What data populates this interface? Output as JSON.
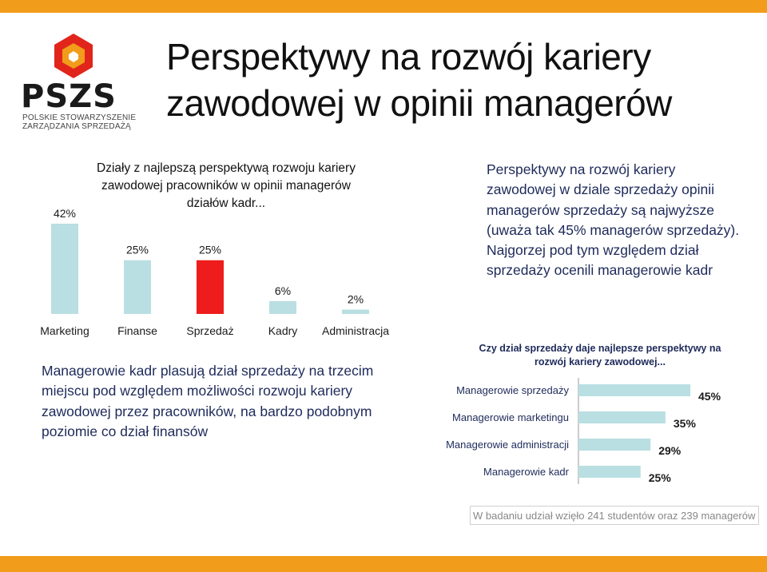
{
  "header": {
    "title_line1": "Perspektywy na rozwój kariery",
    "title_line2": "zawodowej w opinii managerów",
    "colors": {
      "accent": "#f29c1c"
    }
  },
  "logo": {
    "text": "PSZS",
    "subtitle_line1": "POLSKIE STOWARZYSZENIE",
    "subtitle_line2": "ZARZĄDZANIA SPRZEDAŻĄ",
    "colors": {
      "red": "#e1251b",
      "orange": "#f29c1c",
      "dark": "#1a1a1a"
    }
  },
  "right_text": "Perspektywy na rozwój kariery zawodowej w dziale sprzedaży opinii managerów sprzedaży są najwyższe (uważa tak 45% managerów sprzedaży). Najgorzej pod tym względem dział sprzedaży ocenili managerowie kadr",
  "left_text": "Managerowie kadr plasują dział sprzedaży na trzecim miejscu pod względem możliwości rozwoju kariery zawodowej przez pracowników, na bardzo podobnym poziomie co dział finansów",
  "footnote": "W badaniu udział wzięło 241 studentów oraz 239 managerów",
  "chart_data": [
    {
      "type": "bar",
      "title_lines": [
        "Działy z najlepszą perspektywą rozwoju kariery",
        "zawodowej pracowników w opinii managerów",
        "działów kadr..."
      ],
      "categories": [
        "Marketing",
        "Finanse",
        "Sprzedaż",
        "Kadry",
        "Administracja"
      ],
      "values": [
        42,
        25,
        25,
        6,
        2
      ],
      "value_labels": [
        "42%",
        "25%",
        "25%",
        "6%",
        "2%"
      ],
      "colors": [
        "#b9dfe2",
        "#b9dfe2",
        "#ee1c1c",
        "#b9dfe2",
        "#b9dfe2"
      ],
      "ylim": [
        0,
        42
      ],
      "grid": false
    },
    {
      "type": "bar",
      "orientation": "horizontal",
      "title_lines": [
        "Czy dział sprzedaży daje najlepsze perspektywy na",
        "rozwój kariery zawodowej..."
      ],
      "categories": [
        "Managerowie sprzedaży",
        "Managerowie marketingu",
        "Managerowie administracji",
        "Managerowie kadr"
      ],
      "values": [
        45,
        35,
        29,
        25
      ],
      "value_labels": [
        "45%",
        "35%",
        "29%",
        "25%"
      ],
      "colors": [
        "#b9dfe2",
        "#b9dfe2",
        "#b9dfe2",
        "#b9dfe2"
      ],
      "xlim": [
        0,
        45
      ],
      "grid": false
    }
  ]
}
